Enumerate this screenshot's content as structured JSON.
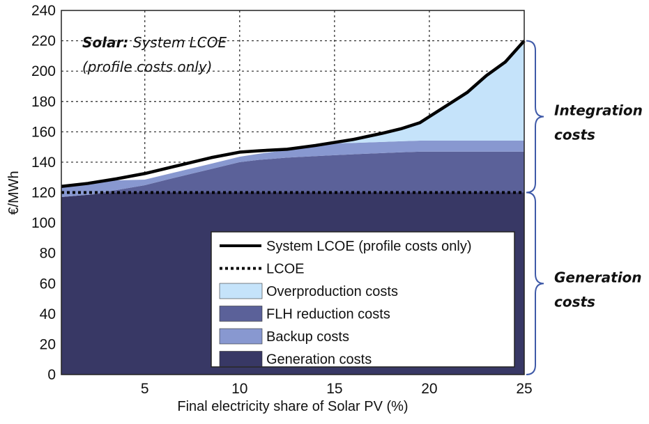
{
  "chart_data": {
    "type": "area",
    "title": "",
    "xlabel": "Final electricity share of Solar PV (%)",
    "ylabel": "€/MWh",
    "xlim": [
      0.6,
      25
    ],
    "ylim": [
      0,
      240
    ],
    "xticks": [
      5,
      10,
      15,
      20,
      25
    ],
    "yticks": [
      0,
      20,
      40,
      60,
      80,
      100,
      120,
      140,
      160,
      180,
      200,
      220,
      240
    ],
    "grid": true,
    "x": [
      0.6,
      2,
      3.5,
      5,
      6.5,
      7.5,
      8.5,
      10,
      11,
      12.5,
      14,
      15,
      16,
      17.5,
      18.5,
      19.5,
      20,
      21,
      22,
      23,
      24,
      25
    ],
    "series": [
      {
        "name": "Generation costs",
        "kind": "stacked-area",
        "color": "#383865",
        "values": [
          117,
          118.5,
          120,
          120,
          120,
          120,
          120,
          120,
          120,
          120,
          120,
          120,
          120,
          120,
          120,
          120,
          120,
          120,
          120,
          120,
          120,
          120
        ]
      },
      {
        "name": "FLH reduction costs",
        "kind": "stacked-area",
        "color": "#5b6199",
        "values": [
          0,
          0,
          1.6,
          4.8,
          9.5,
          12.5,
          15.5,
          20,
          21.5,
          23,
          24,
          24.6,
          25.2,
          26,
          26.5,
          26.9,
          26.9,
          26.9,
          26.9,
          26.9,
          26.9,
          26.9
        ]
      },
      {
        "name": "Backup costs",
        "kind": "stacked-area",
        "color": "#8898d0",
        "values": [
          7,
          7.5,
          6.4,
          3.7,
          3.5,
          3.5,
          3.5,
          3.6,
          4,
          5,
          6.5,
          7.8,
          7.5,
          7.3,
          7.3,
          7.3,
          7.3,
          7.3,
          7.3,
          7.3,
          7.3,
          7.3
        ]
      },
      {
        "name": "Overproduction costs",
        "kind": "stacked-area",
        "color": "#c5e3fa",
        "values": [
          0,
          0,
          0,
          0,
          0,
          0,
          0,
          0,
          0,
          0.5,
          0.5,
          0.6,
          2.3,
          5.7,
          8.2,
          11.8,
          15.8,
          23.8,
          31.8,
          42.8,
          51.8,
          65.8
        ]
      },
      {
        "name": "System LCOE (profile costs only)",
        "kind": "line",
        "style": "solid",
        "color": "#000000",
        "values": [
          124,
          126,
          129,
          132.5,
          137,
          140,
          143,
          146.6,
          147.5,
          148.5,
          151,
          153,
          155,
          159,
          162,
          166,
          170,
          178,
          186,
          197,
          206,
          220
        ]
      },
      {
        "name": "LCOE",
        "kind": "line",
        "style": "dotted",
        "color": "#000000",
        "values": [
          120,
          120,
          120,
          120,
          120,
          120,
          120,
          120,
          120,
          120,
          120,
          120,
          120,
          120,
          120,
          120,
          120,
          120,
          120,
          120,
          120,
          120
        ]
      }
    ],
    "legend": {
      "position": "bottom-right",
      "entries": [
        {
          "label": "System LCOE (profile costs only)",
          "symbol": "solid-line",
          "color": "#000000"
        },
        {
          "label": "LCOE",
          "symbol": "dotted-line",
          "color": "#000000"
        },
        {
          "label": "Overproduction costs",
          "symbol": "patch",
          "color": "#c5e3fa"
        },
        {
          "label": "FLH reduction costs",
          "symbol": "patch",
          "color": "#5b6199"
        },
        {
          "label": "Backup costs",
          "symbol": "patch",
          "color": "#8898d0"
        },
        {
          "label": "Generation costs",
          "symbol": "patch",
          "color": "#383865"
        }
      ]
    },
    "annotations": {
      "title_bold": "Solar:",
      "title_rest": "System LCOE",
      "title_line2": "(profile costs only)",
      "braces": [
        {
          "label_line1": "Integration",
          "label_line2": "costs",
          "from": 120,
          "to": 220,
          "color": "#3f5aa8"
        },
        {
          "label_line1": "Generation",
          "label_line2": "costs",
          "from": 0,
          "to": 120,
          "color": "#3f5aa8"
        }
      ]
    }
  }
}
